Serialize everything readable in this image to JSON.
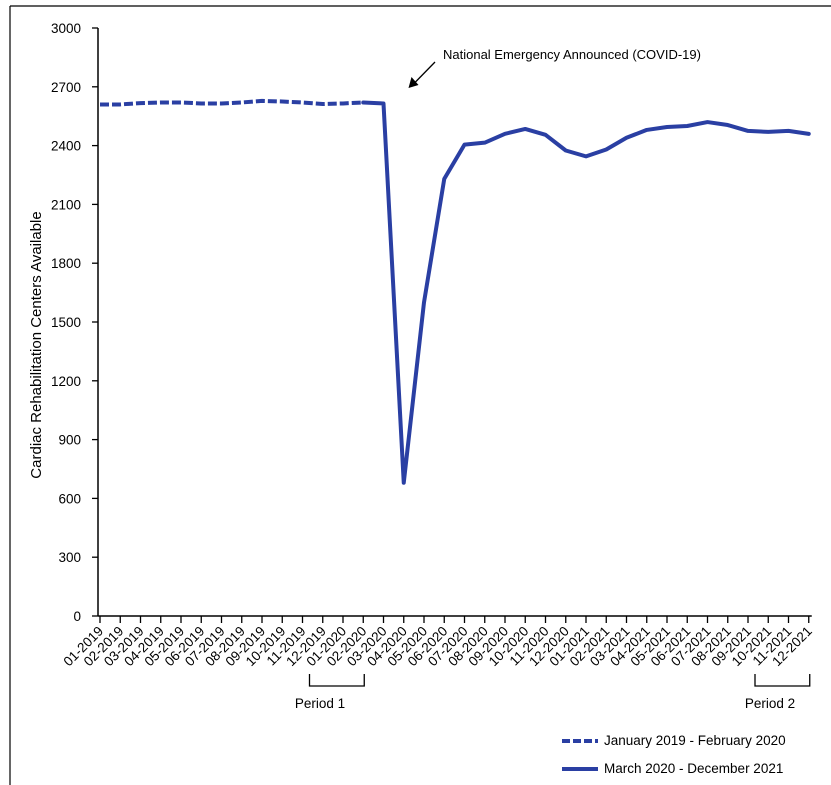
{
  "chart_data": {
    "type": "line",
    "title": "",
    "xlabel": "",
    "ylabel": "Cardiac Rehabilitation Centers Available",
    "ylim": [
      0,
      3000
    ],
    "yticks": [
      0,
      300,
      600,
      900,
      1200,
      1500,
      1800,
      2100,
      2400,
      2700,
      3000
    ],
    "grid": false,
    "legend_position": "bottom-right",
    "categories": [
      "01-2019",
      "02-2019",
      "03-2019",
      "04-2019",
      "05-2019",
      "06-2019",
      "07-2019",
      "08-2019",
      "09-2019",
      "10-2019",
      "11-2019",
      "12-2019",
      "01-2020",
      "02-2020",
      "03-2020",
      "04-2020",
      "05-2020",
      "06-2020",
      "07-2020",
      "08-2020",
      "09-2020",
      "10-2020",
      "11-2020",
      "12-2020",
      "01-2021",
      "02-2021",
      "03-2021",
      "04-2021",
      "05-2021",
      "06-2021",
      "07-2021",
      "08-2021",
      "09-2021",
      "10-2021",
      "11-2021",
      "12-2021"
    ],
    "series": [
      {
        "name": "January 2019 - February 2020",
        "style": "dashed",
        "color": "#2a3fa3",
        "x": [
          "01-2019",
          "02-2019",
          "03-2019",
          "04-2019",
          "05-2019",
          "06-2019",
          "07-2019",
          "08-2019",
          "09-2019",
          "10-2019",
          "11-2019",
          "12-2019",
          "01-2020",
          "02-2020"
        ],
        "values": [
          2610,
          2610,
          2617,
          2620,
          2620,
          2615,
          2615,
          2620,
          2628,
          2625,
          2620,
          2612,
          2615,
          2620
        ]
      },
      {
        "name": "March 2020 - December 2021",
        "style": "solid",
        "color": "#2a3fa3",
        "x": [
          "02-2020",
          "03-2020",
          "04-2020",
          "05-2020",
          "06-2020",
          "07-2020",
          "08-2020",
          "09-2020",
          "10-2020",
          "11-2020",
          "12-2020",
          "01-2021",
          "02-2021",
          "03-2021",
          "04-2021",
          "05-2021",
          "06-2021",
          "07-2021",
          "08-2021",
          "09-2021",
          "10-2021",
          "11-2021",
          "12-2021"
        ],
        "values": [
          2620,
          2615,
          680,
          1600,
          2230,
          2405,
          2415,
          2460,
          2485,
          2455,
          2375,
          2345,
          2380,
          2440,
          2480,
          2495,
          2500,
          2520,
          2505,
          2475,
          2470,
          2475,
          2460
        ]
      }
    ],
    "annotations": [
      {
        "text": "National Emergency Announced (COVID-19)",
        "points_to": "03-2020"
      }
    ],
    "periods": [
      {
        "label": "Period 1",
        "from": "11-2019",
        "to": "02-2020"
      },
      {
        "label": "Period 2",
        "from": "09-2021",
        "to": "12-2021"
      }
    ]
  }
}
